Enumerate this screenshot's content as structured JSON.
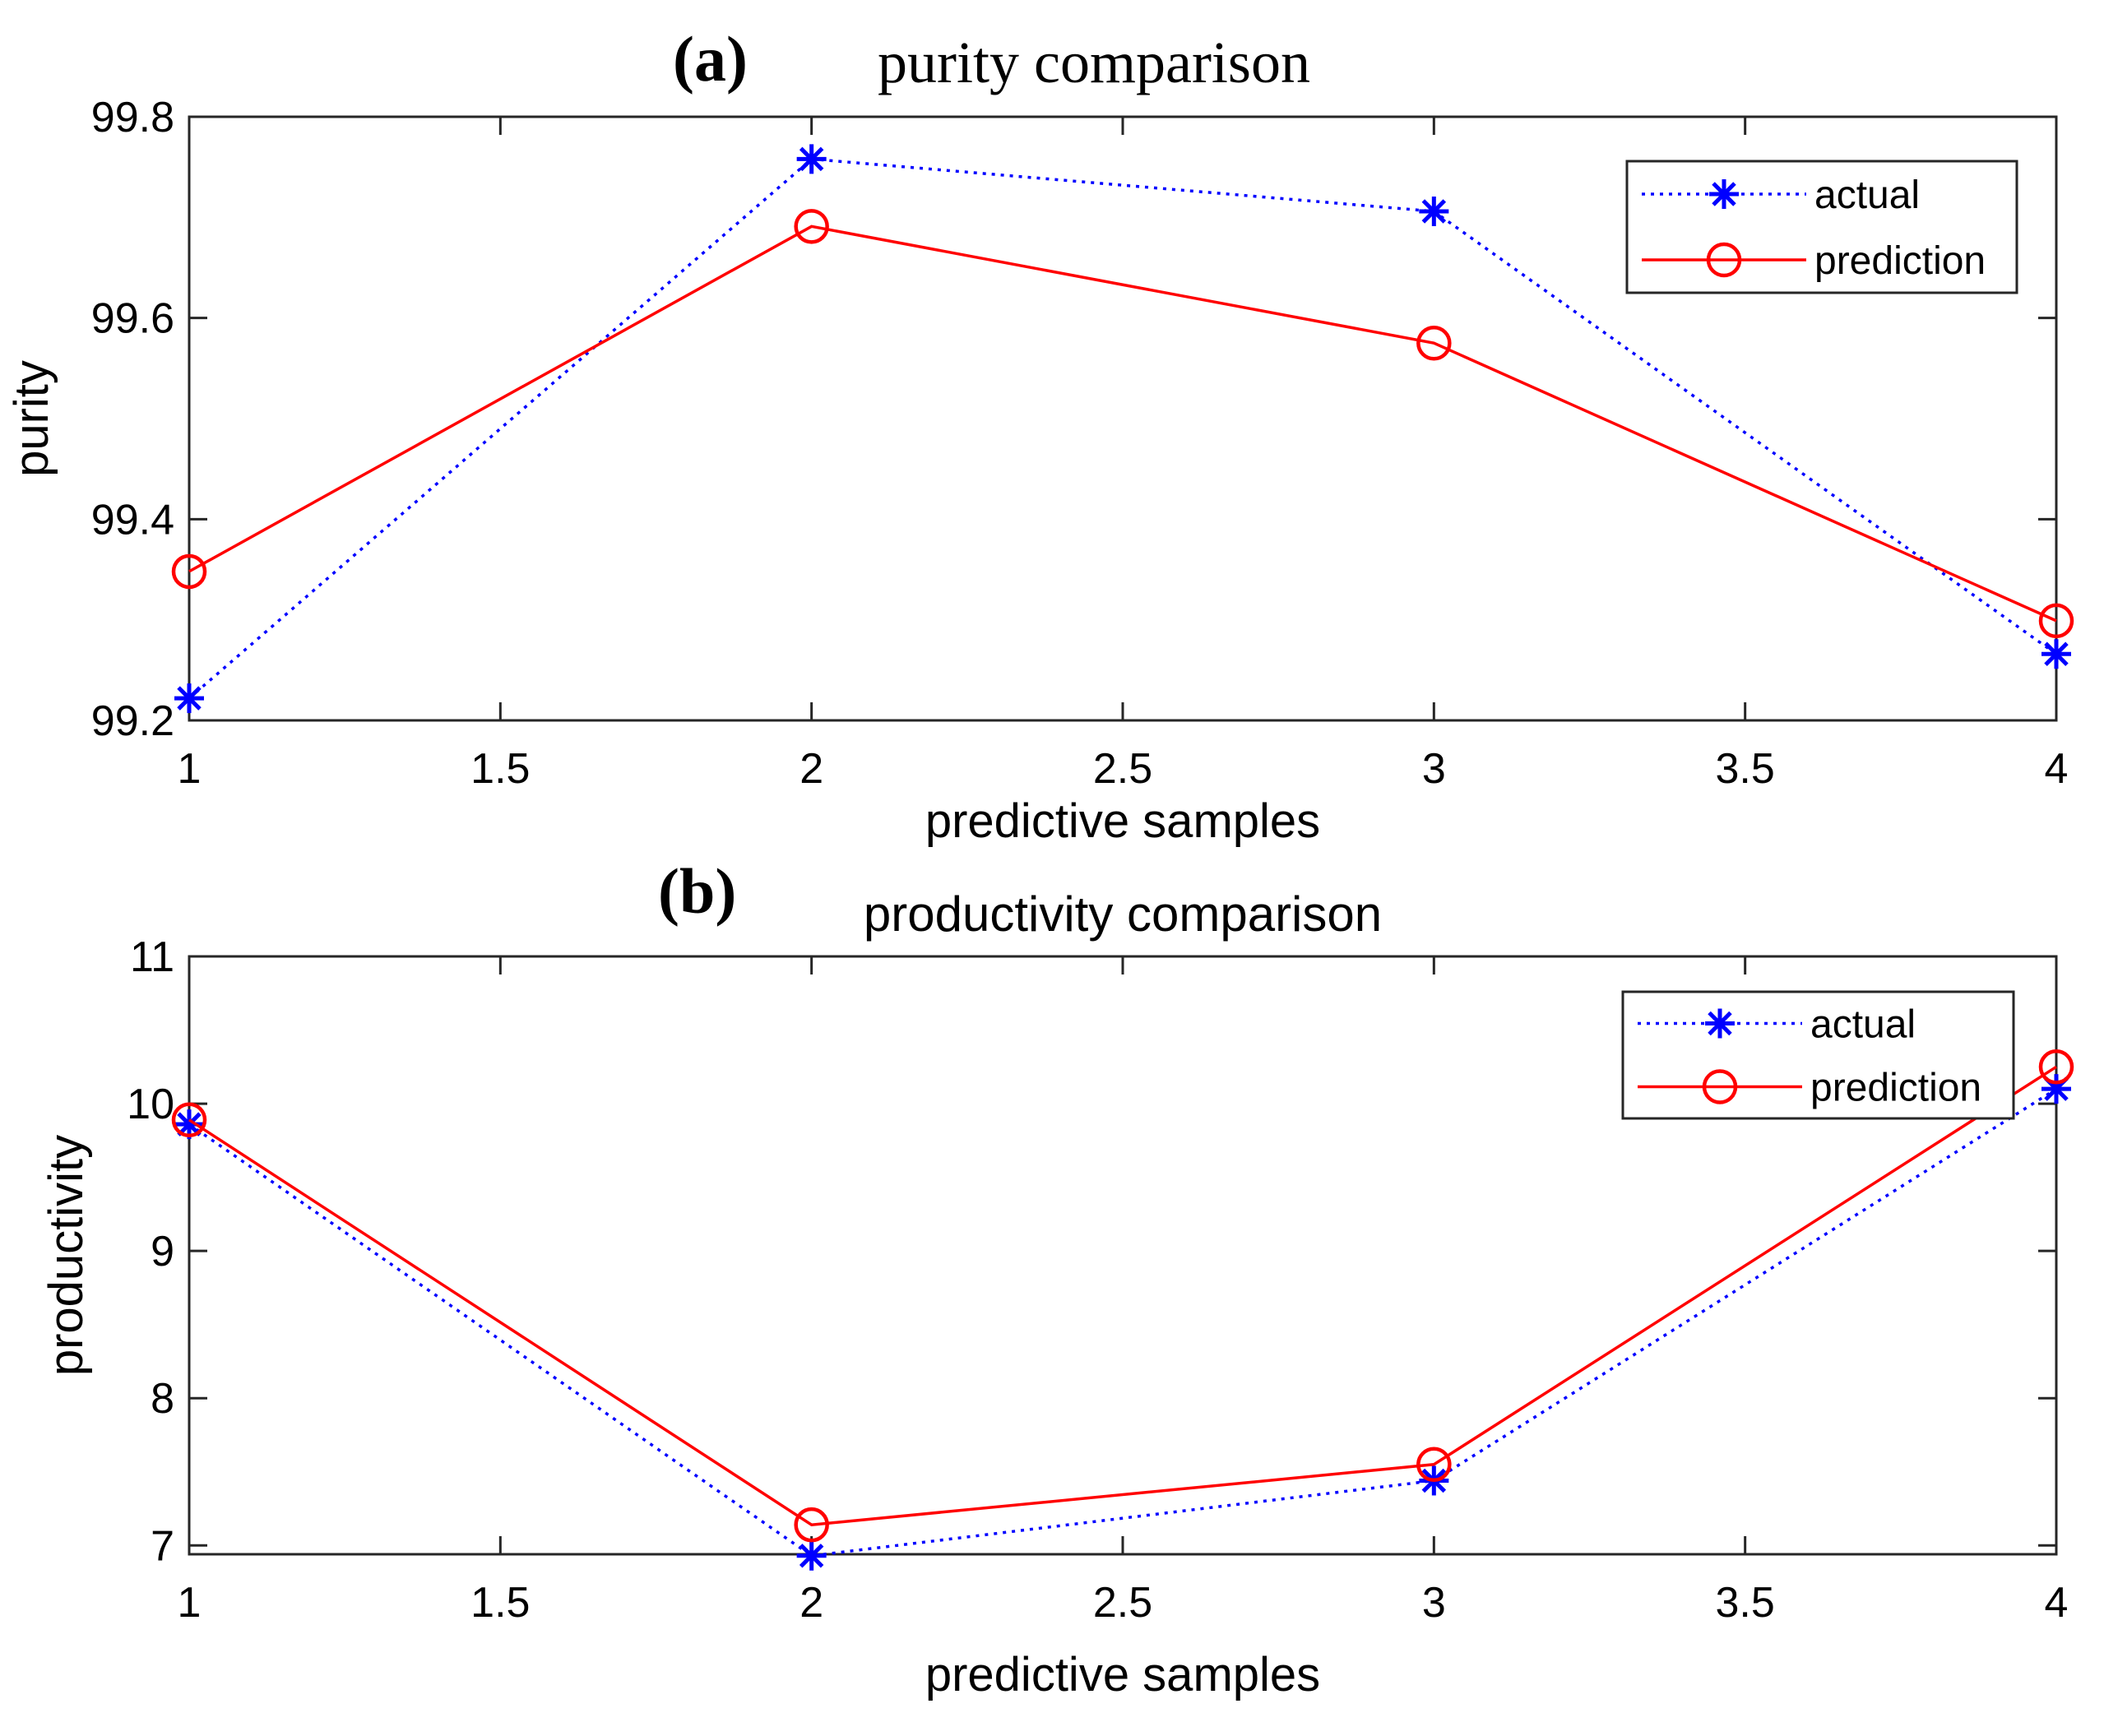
{
  "chart_data": [
    {
      "type": "line",
      "panel_label": "(a)",
      "title": "purity comparison",
      "xlabel": "predictive samples",
      "ylabel": "purity",
      "x": [
        1,
        2,
        3,
        4
      ],
      "xlim": [
        1,
        4
      ],
      "ylim": [
        99.2,
        99.8
      ],
      "xticks": [
        1,
        1.5,
        2,
        2.5,
        3,
        3.5,
        4
      ],
      "xtick_labels": [
        "1",
        "1.5",
        "2",
        "2.5",
        "3",
        "3.5",
        "4"
      ],
      "yticks": [
        99.2,
        99.4,
        99.6,
        99.8
      ],
      "ytick_labels": [
        "99.2",
        "99.4",
        "99.6",
        "99.8"
      ],
      "grid": false,
      "legend_position": "top-right",
      "series": [
        {
          "name": "actual",
          "values": [
            99.222,
            99.758,
            99.706,
            99.266
          ],
          "color": "#0000ff",
          "line_style": "dotted",
          "marker": "asterisk"
        },
        {
          "name": "prediction",
          "values": [
            99.348,
            99.691,
            99.575,
            99.299
          ],
          "color": "#ff0000",
          "line_style": "solid",
          "marker": "circle"
        }
      ]
    },
    {
      "type": "line",
      "panel_label": "(b)",
      "title": "productivity comparison",
      "xlabel": "predictive samples",
      "ylabel": "productivity",
      "x": [
        1,
        2,
        3,
        4
      ],
      "xlim": [
        1,
        4
      ],
      "ylim": [
        6.94,
        11
      ],
      "xticks": [
        1,
        1.5,
        2,
        2.5,
        3,
        3.5,
        4
      ],
      "xtick_labels": [
        "1",
        "1.5",
        "2",
        "2.5",
        "3",
        "3.5",
        "4"
      ],
      "yticks": [
        7,
        8,
        9,
        10,
        11
      ],
      "ytick_labels": [
        "7",
        "8",
        "9",
        "10",
        "11"
      ],
      "grid": false,
      "legend_position": "top-right",
      "series": [
        {
          "name": "actual",
          "values": [
            9.86,
            6.93,
            7.44,
            10.1
          ],
          "color": "#0000ff",
          "line_style": "dotted",
          "marker": "asterisk"
        },
        {
          "name": "prediction",
          "values": [
            9.89,
            7.14,
            7.55,
            10.25
          ],
          "color": "#ff0000",
          "line_style": "solid",
          "marker": "circle"
        }
      ]
    }
  ]
}
